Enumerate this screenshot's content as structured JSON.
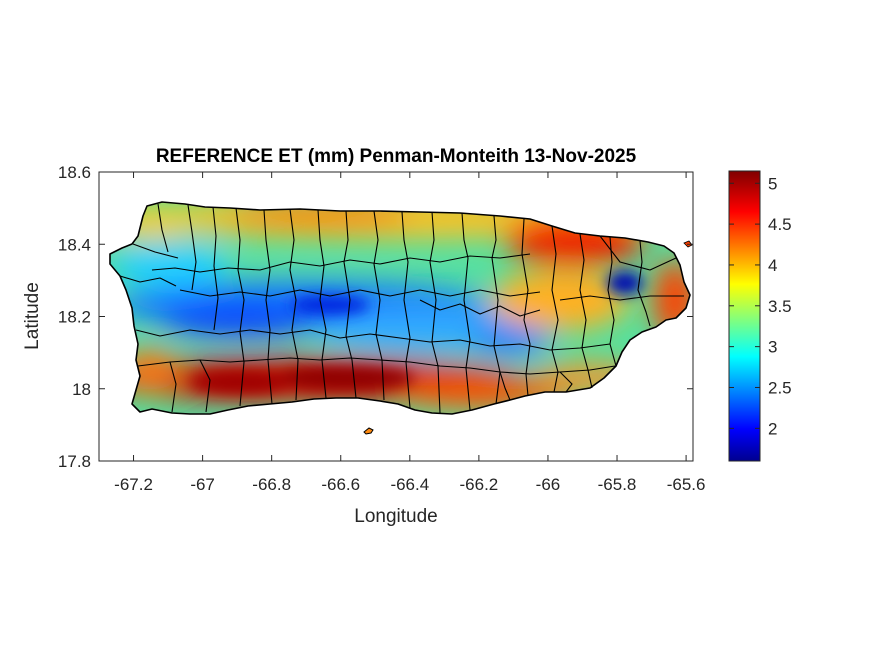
{
  "figure": {
    "title": "REFERENCE ET (mm) Penman-Monteith 13-Nov-2025",
    "xlabel": "Longitude",
    "ylabel": "Latitude",
    "xlim": [
      -67.3,
      -65.58
    ],
    "ylim": [
      17.8,
      18.6
    ],
    "xticks": [
      "-67.2",
      "-67",
      "-66.8",
      "-66.6",
      "-66.4",
      "-66.2",
      "-66",
      "-65.8",
      "-65.6"
    ],
    "xtick_values": [
      -67.2,
      -67.0,
      -66.8,
      -66.6,
      -66.4,
      -66.2,
      -66.0,
      -65.8,
      -65.6
    ],
    "yticks": [
      "18.6",
      "18.4",
      "18.2",
      "18",
      "17.8"
    ],
    "ytick_values": [
      18.6,
      18.4,
      18.2,
      18.0,
      17.8
    ],
    "grid": false
  },
  "colorbar": {
    "colormap": "jet",
    "range": [
      1.6,
      5.15
    ],
    "ticks": [
      "5",
      "4.5",
      "4",
      "3.5",
      "3",
      "2.5",
      "2"
    ],
    "tick_values": [
      5.0,
      4.5,
      4.0,
      3.5,
      3.0,
      2.5,
      2.0
    ]
  },
  "map_data": {
    "region": "Puerto Rico",
    "units": "mm",
    "field_pattern": [
      {
        "area": "south coast (-67.1 to -66.5)",
        "approx_value": 5.0
      },
      {
        "area": "northeast coast (-66.0 to -65.8)",
        "approx_value": 4.7
      },
      {
        "area": "east coast (-65.65)",
        "approx_value": 4.7
      },
      {
        "area": "north coast",
        "approx_value": 4.2
      },
      {
        "area": "central mountains (-66.8 to -66.5)",
        "approx_value": 2.3
      },
      {
        "area": "El Yunque (-65.8)",
        "approx_value": 1.8
      }
    ]
  }
}
